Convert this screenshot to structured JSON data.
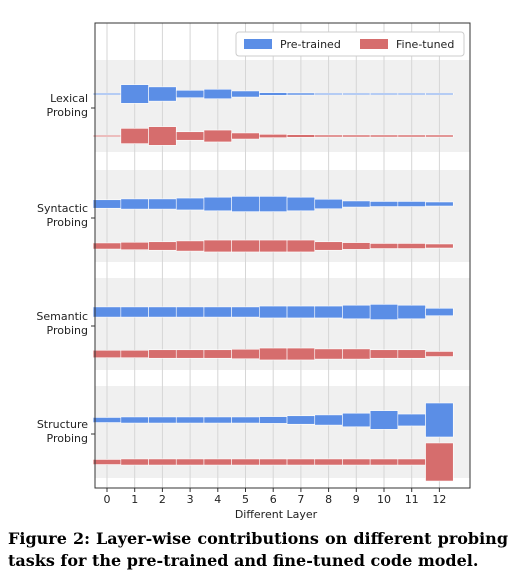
{
  "chart_data": {
    "type": "bar",
    "xlabel": "Different Layer",
    "x_ticks": [
      "0",
      "1",
      "2",
      "3",
      "4",
      "5",
      "6",
      "7",
      "8",
      "9",
      "10",
      "11",
      "12"
    ],
    "legend_position": "top-right",
    "groups": [
      "Lexical Probing",
      "Syntactic Probing",
      "Semantic Probing",
      "Structure Probing"
    ],
    "series": [
      {
        "name": "Pre-trained",
        "color": "#5b8ee6",
        "values": [
          [
            0.03,
            0.55,
            0.42,
            0.22,
            0.28,
            0.18,
            0.08,
            0.06,
            0.04,
            0.04,
            0.04,
            0.04,
            0.04
          ],
          [
            0.25,
            0.3,
            0.3,
            0.35,
            0.4,
            0.45,
            0.45,
            0.4,
            0.28,
            0.18,
            0.15,
            0.15,
            0.12
          ],
          [
            0.3,
            0.3,
            0.3,
            0.3,
            0.3,
            0.3,
            0.35,
            0.35,
            0.35,
            0.4,
            0.45,
            0.4,
            0.22
          ],
          [
            0.15,
            0.18,
            0.18,
            0.18,
            0.18,
            0.18,
            0.2,
            0.25,
            0.3,
            0.4,
            0.55,
            0.35,
            1.0
          ]
        ]
      },
      {
        "name": "Fine-tuned",
        "color": "#d66d6d",
        "values": [
          [
            0.03,
            0.45,
            0.55,
            0.25,
            0.35,
            0.18,
            0.1,
            0.08,
            0.06,
            0.06,
            0.06,
            0.06,
            0.06
          ],
          [
            0.18,
            0.22,
            0.25,
            0.3,
            0.35,
            0.35,
            0.35,
            0.35,
            0.25,
            0.2,
            0.15,
            0.15,
            0.12
          ],
          [
            0.22,
            0.22,
            0.25,
            0.25,
            0.25,
            0.28,
            0.35,
            0.35,
            0.3,
            0.3,
            0.25,
            0.25,
            0.15
          ],
          [
            0.15,
            0.18,
            0.18,
            0.18,
            0.18,
            0.18,
            0.18,
            0.18,
            0.18,
            0.18,
            0.18,
            0.18,
            1.12
          ]
        ]
      }
    ]
  },
  "caption": "Figure 2: Layer-wise contributions on different probing tasks for the pre-trained and fine-tuned code model."
}
